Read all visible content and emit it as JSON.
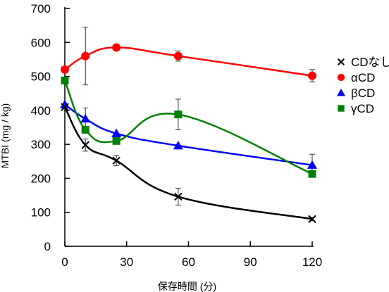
{
  "chart_data": {
    "type": "line",
    "title": "",
    "xlabel": "保存時間 (分)",
    "ylabel": "MTBI (mg / kg)",
    "xlim": [
      0,
      120
    ],
    "ylim": [
      0,
      700
    ],
    "xticks": [
      0,
      30,
      60,
      90,
      120
    ],
    "yticks": [
      0,
      100,
      200,
      300,
      400,
      500,
      600,
      700
    ],
    "xtick_labels": [
      "0",
      "30",
      "60",
      "90",
      "120"
    ],
    "ytick_labels": [
      "0",
      "100",
      "200",
      "300",
      "400",
      "500",
      "600",
      "700"
    ],
    "grid": false,
    "legend_position": "right",
    "series": [
      {
        "name": "CDなし",
        "marker": "x",
        "color": "#000000",
        "x": [
          0,
          10,
          25,
          55,
          120
        ],
        "y": [
          410,
          298,
          252,
          146,
          80
        ],
        "err": [
          0,
          18,
          15,
          25,
          5
        ]
      },
      {
        "name": "αCD",
        "marker": "circle",
        "color": "#ff0000",
        "x": [
          0,
          10,
          25,
          55,
          120
        ],
        "y": [
          520,
          560,
          585,
          560,
          502
        ],
        "err": [
          0,
          85,
          0,
          15,
          18
        ]
      },
      {
        "name": "βCD",
        "marker": "triangle",
        "color": "#0000ff",
        "x": [
          0,
          10,
          25,
          55,
          120
        ],
        "y": [
          417,
          375,
          332,
          296,
          239
        ],
        "err": [
          0,
          32,
          0,
          0,
          32
        ]
      },
      {
        "name": "γCD",
        "marker": "square",
        "color": "#008000",
        "x": [
          0,
          10,
          25,
          55,
          120
        ],
        "y": [
          488,
          343,
          310,
          388,
          213
        ],
        "err": [
          0,
          0,
          0,
          45,
          0
        ]
      }
    ]
  }
}
